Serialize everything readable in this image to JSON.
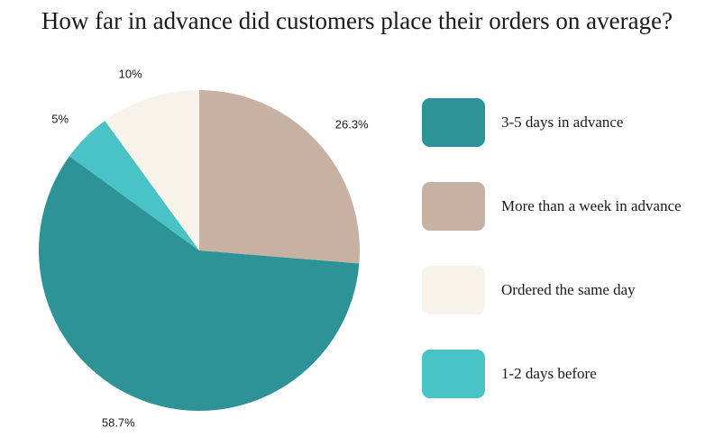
{
  "chart_data": {
    "type": "pie",
    "title": "How far in advance did customers place their orders on average?",
    "slices": [
      {
        "name": "More than a week in advance",
        "value": 26.3,
        "label": "26.3%",
        "color": "#C6B1A3"
      },
      {
        "name": "3-5 days in advance",
        "value": 58.7,
        "label": "58.7%",
        "color": "#2E9396"
      },
      {
        "name": "1-2 days before",
        "value": 5,
        "label": "5%",
        "color": "#4AC3C6"
      },
      {
        "name": "Ordered the same day",
        "value": 10,
        "label": "10%",
        "color": "#F8F3EA"
      }
    ],
    "legend": [
      {
        "name": "3-5 days in advance",
        "color": "#2E9396"
      },
      {
        "name": "More than a week in advance",
        "color": "#C6B1A3"
      },
      {
        "name": "Ordered the same day",
        "color": "#F8F3EA"
      },
      {
        "name": "1-2 days before",
        "color": "#4AC3C6"
      }
    ],
    "legend_position": "right",
    "start_angle": "12 o'clock",
    "direction": "clockwise"
  }
}
